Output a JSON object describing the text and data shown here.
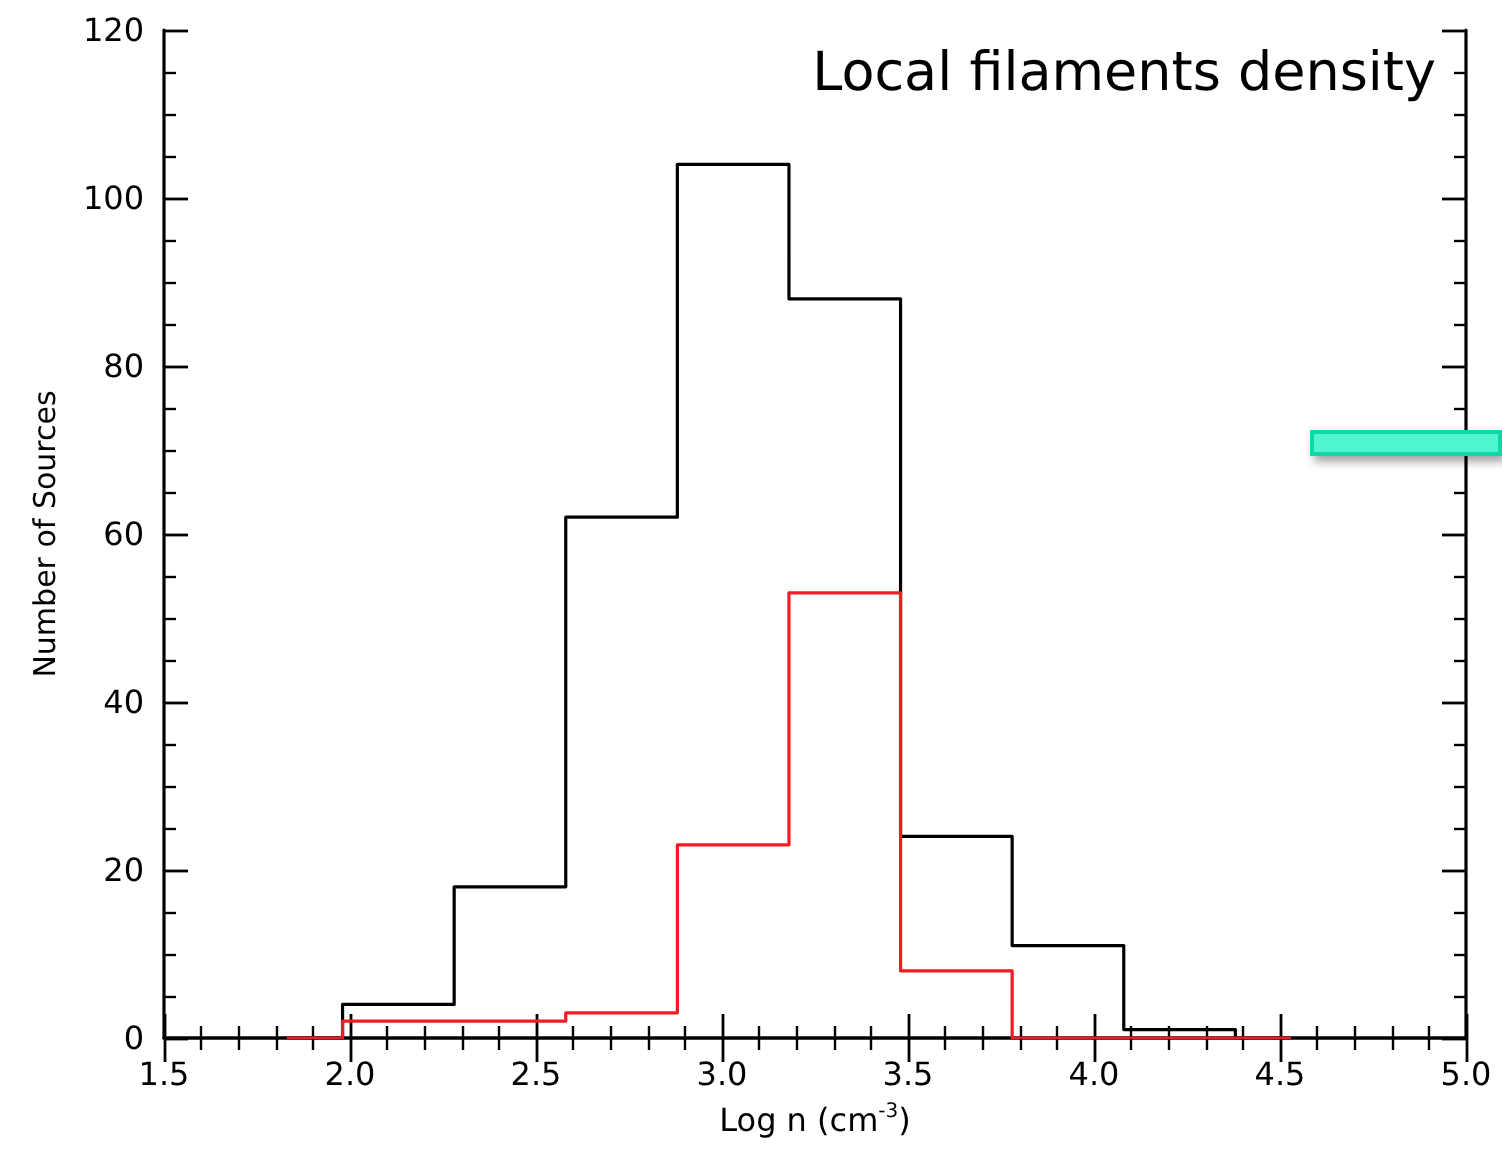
{
  "chart_data": {
    "type": "histogram",
    "title": "Local filaments density",
    "xlabel": "Log n (cm$^{-3}$)",
    "ylabel": "Number of Sources",
    "bins": [
      1.83,
      1.98,
      2.28,
      2.58,
      2.88,
      3.18,
      3.48,
      3.78,
      4.08,
      4.38,
      4.53
    ],
    "series": [
      {
        "color": "#000000",
        "values": [
          0,
          4,
          18,
          62,
          104,
          88,
          24,
          11,
          1,
          0
        ]
      },
      {
        "color": "#ee1c25",
        "values": [
          0,
          2,
          2,
          3,
          23,
          53,
          8,
          0,
          0,
          0
        ]
      }
    ],
    "xlim": [
      1.5,
      5.0
    ],
    "xticks": [
      {
        "value": 1.5,
        "label": "1.5"
      },
      {
        "value": 2.0,
        "label": "2.0"
      },
      {
        "value": 2.5,
        "label": "2.5"
      },
      {
        "value": 3.0,
        "label": "3.0"
      },
      {
        "value": 3.5,
        "label": "3.5"
      },
      {
        "value": 4.0,
        "label": "4.0"
      },
      {
        "value": 4.5,
        "label": "4.5"
      },
      {
        "value": 5.0,
        "label": "5.0"
      }
    ],
    "ylim": [
      0,
      120
    ],
    "yticks": [
      0,
      20,
      40,
      60,
      80,
      100,
      120
    ],
    "grid": false
  }
}
